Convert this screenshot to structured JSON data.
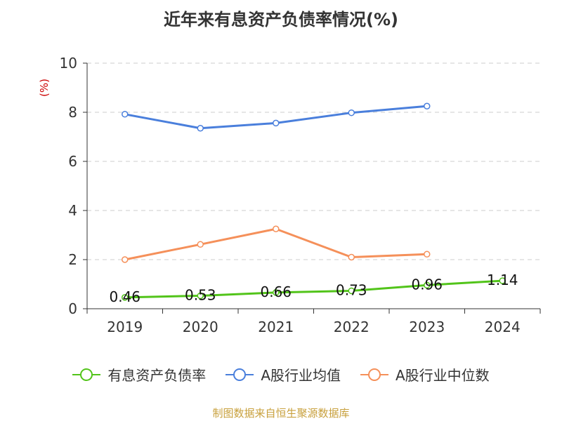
{
  "title": "近年来有息资产负债率情况(%)",
  "source": "制图数据来自恒生聚源数据库",
  "colors": {
    "title": "#333333",
    "ylabel": "#cc0000",
    "source": "#c8a03c",
    "axis": "#333333",
    "grid": "#cccccc"
  },
  "chart_data": {
    "type": "line",
    "title": "近年来有息资产负债率情况(%)",
    "xlabel": "",
    "ylabel": "(%)",
    "categories": [
      "2019",
      "2020",
      "2021",
      "2022",
      "2023",
      "2024"
    ],
    "ylim": [
      0,
      10
    ],
    "yticks": [
      "0",
      "2",
      "4",
      "6",
      "8",
      "10"
    ],
    "grid": "horizontal-dashed",
    "legend_position": "bottom",
    "series": [
      {
        "name": "有息资产负债率",
        "color": "#52c41a",
        "values": [
          0.46,
          0.53,
          0.66,
          0.73,
          0.96,
          1.14
        ],
        "labels": [
          "0.46",
          "0.53",
          "0.66",
          "0.73",
          "0.96",
          "1.14"
        ]
      },
      {
        "name": "A股行业均值",
        "color": "#4a7fdc",
        "values": [
          7.92,
          7.35,
          7.56,
          7.98,
          8.25,
          null
        ]
      },
      {
        "name": "A股行业中位数",
        "color": "#f5905a",
        "values": [
          2.0,
          2.62,
          3.25,
          2.1,
          2.22,
          null
        ]
      }
    ]
  }
}
